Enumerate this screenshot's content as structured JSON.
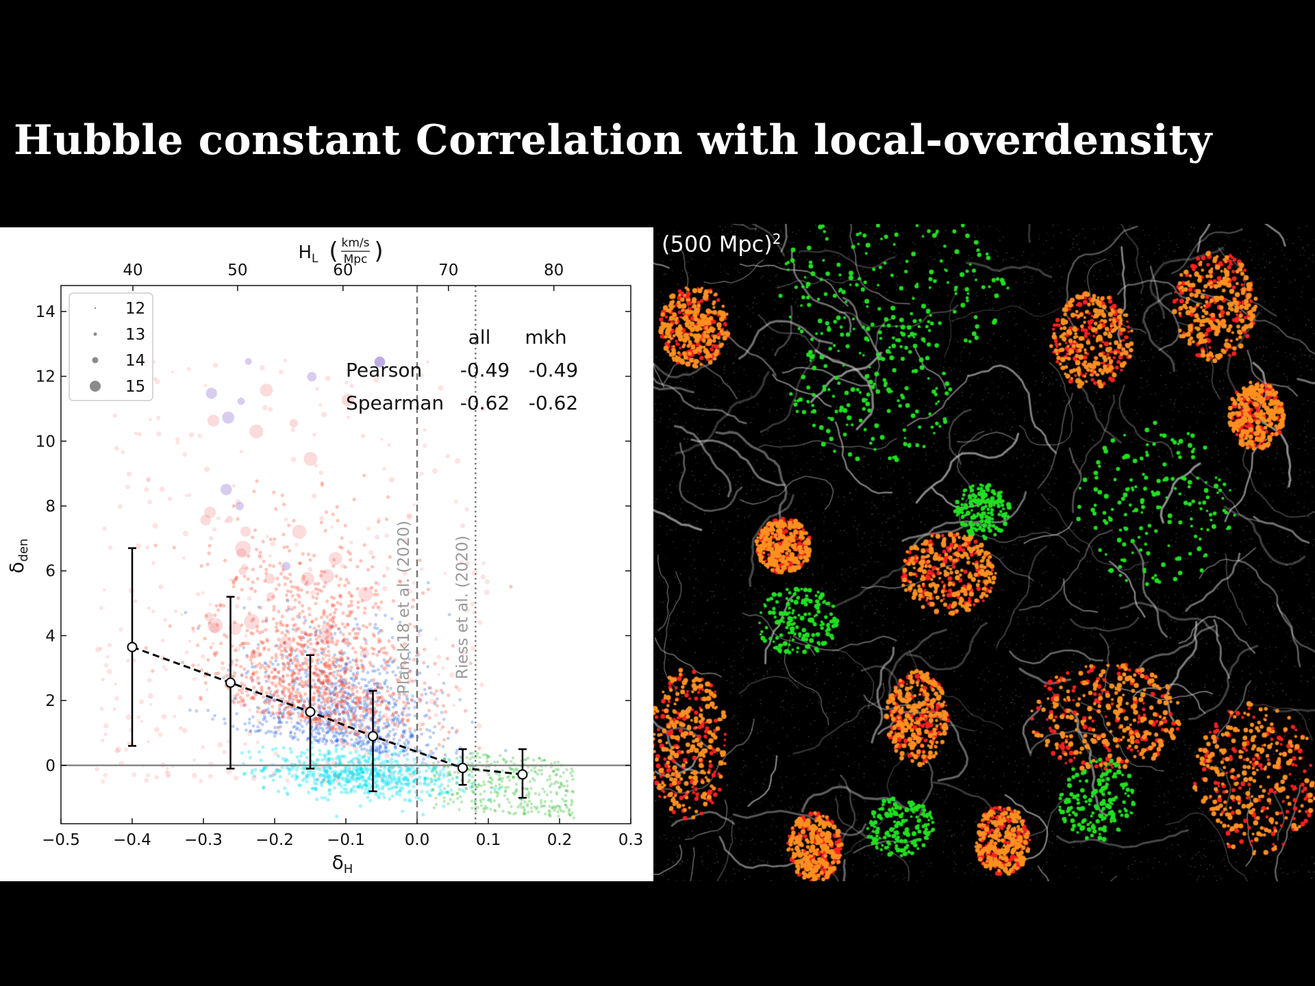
{
  "slide": {
    "title": "Hubble constant Correlation with local-overdensity"
  },
  "chart_data": {
    "type": "scatter",
    "xlabel": "δ",
    "xlabel_sub": "H",
    "ylabel": "δ",
    "ylabel_sub": "den",
    "top_axis_label": "H",
    "top_axis_sub": "L",
    "top_axis_unit_num": "km/s",
    "top_axis_unit_den": "Mpc",
    "xlim": [
      -0.5,
      0.3
    ],
    "ylim": [
      -1.8,
      14.8
    ],
    "xticks": [
      -0.5,
      -0.4,
      -0.3,
      -0.2,
      -0.1,
      0.0,
      0.1,
      0.2,
      0.3
    ],
    "xtick_labels": [
      "−0.5",
      "−0.4",
      "−0.3",
      "−0.2",
      "−0.1",
      "0.0",
      "0.1",
      "0.2",
      "0.3"
    ],
    "yticks": [
      0,
      2,
      4,
      6,
      8,
      10,
      12,
      14
    ],
    "ytick_labels": [
      "0",
      "2",
      "4",
      "6",
      "8",
      "10",
      "12",
      "14"
    ],
    "top_ticks": [
      40,
      50,
      60,
      70,
      80
    ],
    "top_tick_labels": [
      "40",
      "50",
      "60",
      "70",
      "80"
    ],
    "top_tick_positions_deltaH": [
      -0.399,
      -0.252,
      -0.104,
      0.044,
      0.192
    ],
    "binned_means": [
      {
        "x": -0.4,
        "y": 3.65,
        "ylow": 0.6,
        "yhigh": 6.7
      },
      {
        "x": -0.262,
        "y": 2.55,
        "ylow": -0.1,
        "yhigh": 5.2
      },
      {
        "x": -0.15,
        "y": 1.65,
        "ylow": -0.1,
        "yhigh": 3.4
      },
      {
        "x": -0.062,
        "y": 0.9,
        "ylow": -0.8,
        "yhigh": 2.3
      },
      {
        "x": 0.064,
        "y": -0.08,
        "ylow": -0.6,
        "yhigh": 0.5
      },
      {
        "x": 0.148,
        "y": -0.28,
        "ylow": -1.0,
        "yhigh": 0.5
      }
    ],
    "reference_lines": [
      {
        "x": 0.0,
        "label": "Planck18 et al. (2020)",
        "style": "dashed"
      },
      {
        "x": 0.082,
        "label": "Riess et al. (2020)",
        "style": "dotted"
      }
    ],
    "horizontal_line_y": 0,
    "legend": {
      "placement": "top-left",
      "entries": [
        "12",
        "13",
        "14",
        "15"
      ]
    },
    "correlation_table": {
      "headers": [
        "all",
        "mkh"
      ],
      "rows": [
        {
          "name": "Pearson",
          "all": "-0.49",
          "mkh": "-0.49"
        },
        {
          "name": "Spearman",
          "all": "-0.62",
          "mkh": "-0.62"
        }
      ]
    },
    "colors": {
      "high_density": "#ff4020",
      "mid_density": "#2060e0",
      "low_density": "#00e0f0",
      "positive_tail": "#40c040",
      "mean_line": "#000000"
    }
  },
  "web_image": {
    "label": "(500 Mpc)",
    "label_exp": "2",
    "colors": {
      "filaments": "#c8c8c8",
      "dense": "#ff9020",
      "dense_core": "#ff2020",
      "void": "#20e020"
    }
  }
}
